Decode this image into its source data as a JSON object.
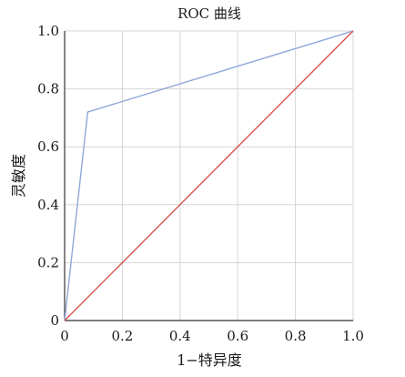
{
  "chart_data": {
    "type": "line",
    "title": "ROC 曲线",
    "xlabel": "1−特异度",
    "ylabel": "灵敏度",
    "xlim": [
      0,
      1
    ],
    "ylim": [
      0,
      1
    ],
    "x_ticks": [
      "0",
      "0.2",
      "0.4",
      "0.6",
      "0.8",
      "1.0"
    ],
    "y_ticks": [
      "0",
      "0.2",
      "0.4",
      "0.6",
      "0.8",
      "1.0"
    ],
    "grid": true,
    "legend": "none",
    "series": [
      {
        "color": "#8fa8d8",
        "points": [
          [
            0,
            0
          ],
          [
            0.08,
            0.72
          ],
          [
            1.0,
            1.0
          ]
        ]
      },
      {
        "color": "#d9534f",
        "points": [
          [
            0,
            0
          ],
          [
            1.0,
            1.0
          ]
        ]
      }
    ]
  }
}
